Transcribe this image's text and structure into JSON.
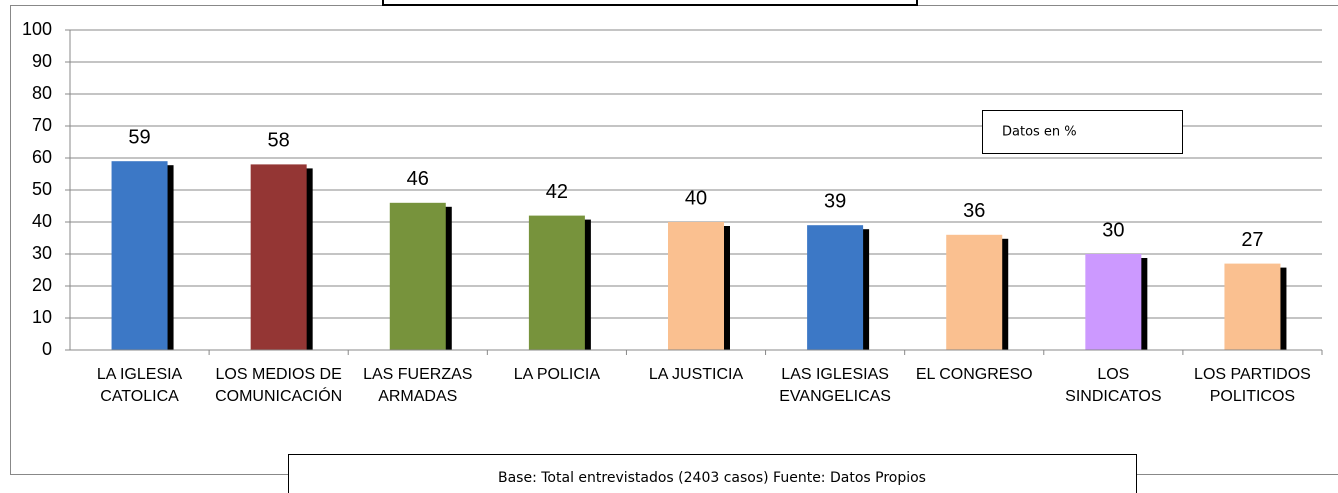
{
  "chart_data": {
    "type": "bar",
    "categories": [
      "LA IGLESIA\nCATOLICA",
      "LOS MEDIOS DE\nCOMUNICACIÓN",
      "LAS FUERZAS\nARMADAS",
      "LA POLICIA",
      "LA JUSTICIA",
      "LAS IGLESIAS\nEVANGELICAS",
      "EL CONGRESO",
      "LOS\nSINDICATOS",
      "LOS PARTIDOS\nPOLITICOS"
    ],
    "values": [
      59,
      58,
      46,
      42,
      40,
      39,
      36,
      30,
      27
    ],
    "colors": [
      "#3c78c6",
      "#943634",
      "#77933c",
      "#77933c",
      "#fac090",
      "#3c78c6",
      "#fac090",
      "#cc99ff",
      "#fac090"
    ],
    "ylim": [
      0,
      100
    ],
    "yticks": [
      0,
      10,
      20,
      30,
      40,
      50,
      60,
      70,
      80,
      90,
      100
    ],
    "grid": true,
    "annotations": [
      "Datos en %",
      "Base: Total entrevistados (2403 casos) Fuente: Datos Propios"
    ]
  }
}
